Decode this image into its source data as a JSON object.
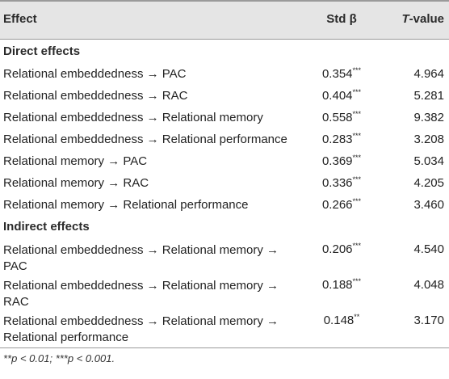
{
  "header": {
    "effect": "Effect",
    "std": "Std β",
    "t_italic": "T",
    "t_rest": "-value"
  },
  "sections": [
    {
      "title": "Direct effects",
      "rows": [
        {
          "effect": "Relational embeddedness → PAC",
          "std": "0.354",
          "sig": "***",
          "t": "4.964"
        },
        {
          "effect": "Relational embeddedness → RAC",
          "std": "0.404",
          "sig": "***",
          "t": "5.281"
        },
        {
          "effect": "Relational embeddedness → Relational memory",
          "std": "0.558",
          "sig": "***",
          "t": "9.382"
        },
        {
          "effect": "Relational embeddedness → Relational performance",
          "std": "0.283",
          "sig": "***",
          "t": "3.208"
        },
        {
          "effect": "Relational memory → PAC",
          "std": "0.369",
          "sig": "***",
          "t": "5.034"
        },
        {
          "effect": "Relational memory → RAC",
          "std": "0.336",
          "sig": "***",
          "t": "4.205"
        },
        {
          "effect": "Relational memory → Relational performance",
          "std": "0.266",
          "sig": "***",
          "t": "3.460"
        }
      ]
    },
    {
      "title": "Indirect effects",
      "rows": [
        {
          "effect": "Relational embeddedness → Relational memory → PAC",
          "std": "0.206",
          "sig": "***",
          "t": "4.540"
        },
        {
          "effect": "Relational embeddedness → Relational memory → RAC",
          "std": "0.188",
          "sig": "***",
          "t": "4.048"
        },
        {
          "effect": "Relational embeddedness → Relational memory → Relational performance",
          "std": "0.148",
          "sig": "**",
          "t": "3.170"
        }
      ]
    }
  ],
  "footnote": "**p < 0.01; ***p < 0.001."
}
